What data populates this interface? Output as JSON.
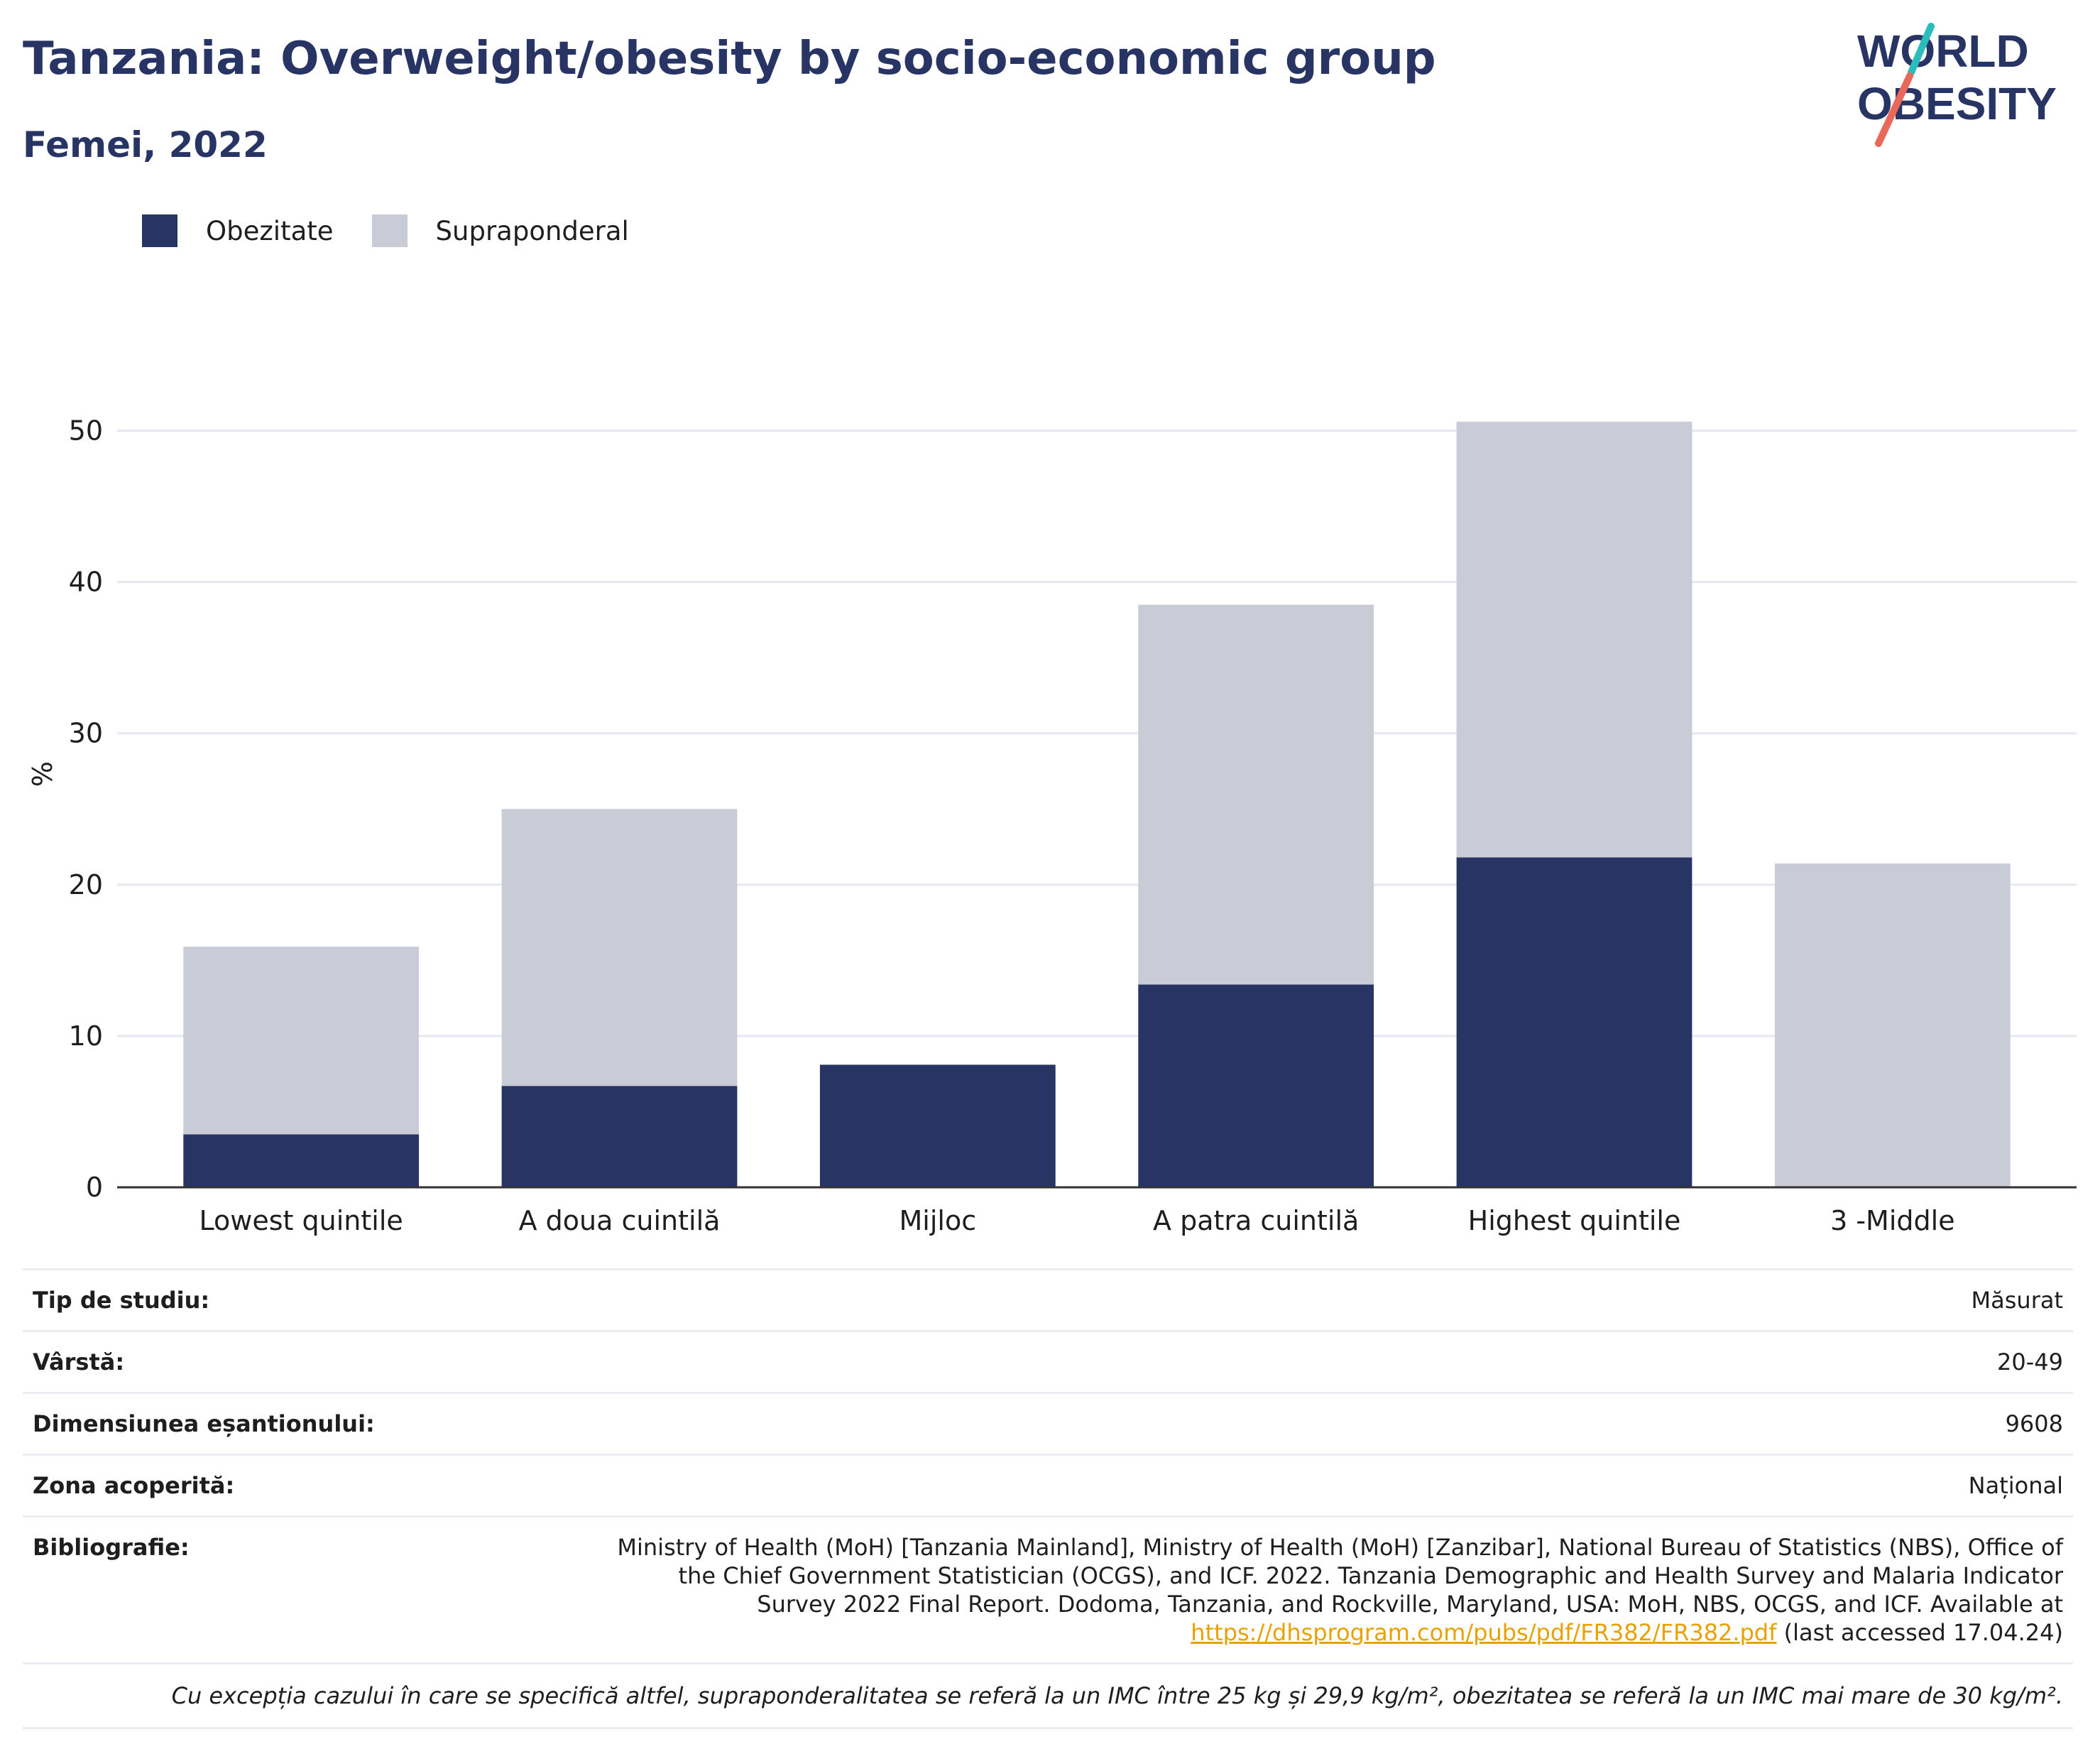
{
  "header": {
    "title": "Tanzania: Overweight/obesity by socio-economic group",
    "subtitle": "Femei, 2022"
  },
  "logo": {
    "line1": "WORLD",
    "line2": "OBESITY",
    "colors": {
      "text": "#283564",
      "slash_top": "#2bbdbb",
      "slash_bottom": "#e8685a"
    }
  },
  "legend": {
    "obesity": {
      "label": "Obezitate",
      "color": "#283564"
    },
    "overweight": {
      "label": "Supraponderal",
      "color": "#c9cbd6"
    }
  },
  "chart_data": {
    "type": "bar",
    "stacked": true,
    "categories": [
      "Lowest quintile",
      "A doua cuintilă",
      "Mijloc",
      "A patra cuintilă",
      "Highest quintile",
      "3 -Middle"
    ],
    "series": [
      {
        "name": "Obezitate",
        "values": [
          3.5,
          6.7,
          8.1,
          13.4,
          21.8,
          0
        ],
        "color": "#283564"
      },
      {
        "name": "Supraponderal",
        "values": [
          12.4,
          18.3,
          0,
          25.1,
          28.8,
          21.4
        ],
        "color": "#c9cbd6"
      }
    ],
    "ylabel": "%",
    "xlabel": "",
    "ylim": [
      0,
      55
    ],
    "yticks": [
      0,
      10,
      20,
      30,
      40,
      50
    ],
    "grid": true,
    "legend_position": "top-left"
  },
  "info": {
    "study_type": {
      "label": "Tip de studiu:",
      "value": "Măsurat"
    },
    "age": {
      "label": "Vârstă:",
      "value": "20-49"
    },
    "sample_size": {
      "label": "Dimensiunea eșantionului:",
      "value": "9608"
    },
    "coverage": {
      "label": "Zona acoperită:",
      "value": "Național"
    },
    "bibliography": {
      "label": "Bibliografie:",
      "text": "Ministry of Health (MoH) [Tanzania Mainland], Ministry of Health (MoH) [Zanzibar], National Bureau of Statistics (NBS), Office of the Chief Government Statistician (OCGS), and ICF. 2022. Tanzania Demographic and Health Survey and Malaria Indicator Survey 2022 Final Report. Dodoma, Tanzania, and Rockville, Maryland, USA: MoH, NBS, OCGS, and ICF. Available at",
      "link": "https://dhsprogram.com/pubs/pdf/FR382/FR382.pdf",
      "suffix": "(last accessed 17.04.24)"
    },
    "note": "Cu excepția cazului în care se specifică altfel, supraponderalitatea se referă la un IMC între 25 kg și 29,9 kg/m², obezitatea se referă la un IMC mai mare de 30 kg/m²."
  }
}
